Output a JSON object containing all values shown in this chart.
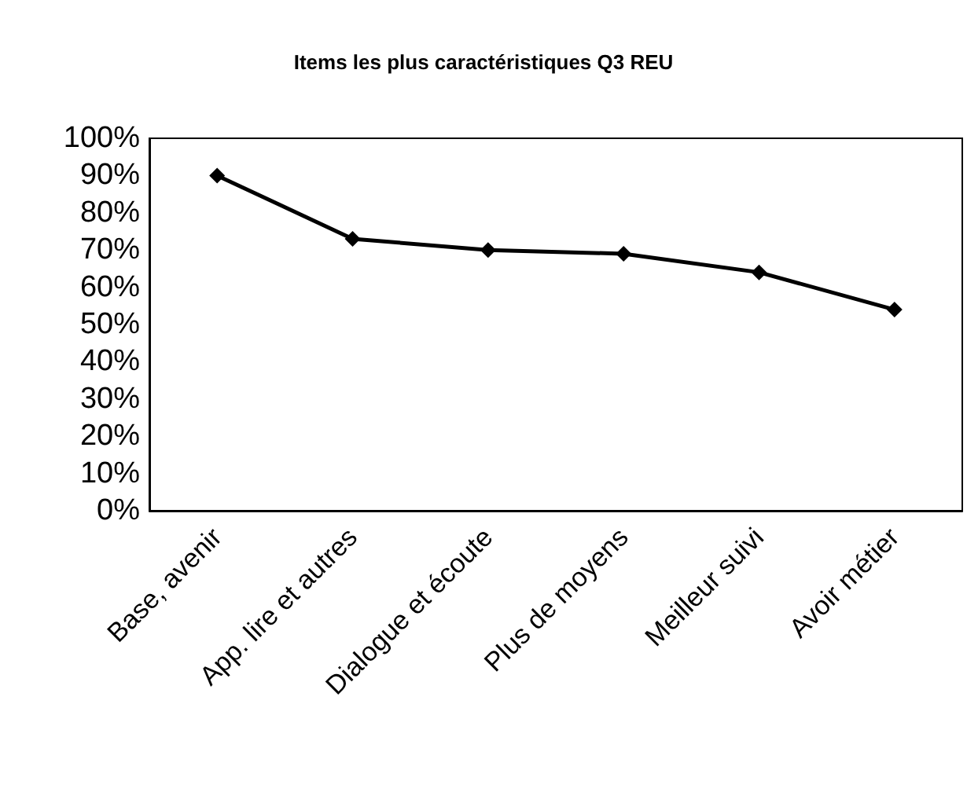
{
  "chart_data": {
    "type": "line",
    "title": "Items les plus caractéristiques Q3 REU",
    "categories": [
      "Base, avenir",
      "App. lire et autres",
      "Dialogue et écoute",
      "Plus de moyens",
      "Meilleur suivi",
      "Avoir métier"
    ],
    "series": [
      {
        "color": "#000000",
        "values": [
          90,
          73,
          70,
          69,
          64,
          54
        ]
      }
    ],
    "ylim": [
      0,
      100
    ],
    "yticks": [
      {
        "value": 0,
        "label": "0%"
      },
      {
        "value": 10,
        "label": "10%"
      },
      {
        "value": 20,
        "label": "20%"
      },
      {
        "value": 30,
        "label": "30%"
      },
      {
        "value": 40,
        "label": "40%"
      },
      {
        "value": 50,
        "label": "50%"
      },
      {
        "value": 60,
        "label": "60%"
      },
      {
        "value": 70,
        "label": "70%"
      },
      {
        "value": 80,
        "label": "80%"
      },
      {
        "value": 90,
        "label": "90%"
      },
      {
        "value": 100,
        "label": "100%"
      }
    ],
    "grid": false,
    "marker": "diamond",
    "line_style": "solid"
  }
}
